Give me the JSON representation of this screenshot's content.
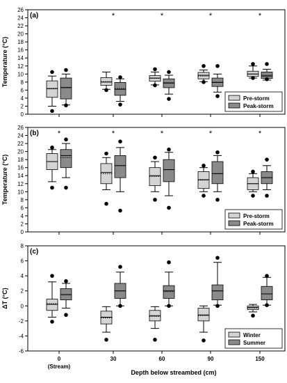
{
  "xlabel": "Depth below streambed (cm)",
  "categories": [
    "0",
    "30",
    "60",
    "90",
    "150"
  ],
  "category_sublabel": "(Stream)",
  "colors": {
    "series1": "#d4d4d4",
    "series2": "#8a8a8a"
  },
  "chart_data": [
    {
      "type": "box",
      "label": "(a)",
      "ylabel": "Temperature (°C)",
      "ylim": [
        0,
        26
      ],
      "yticks": [
        0,
        2,
        4,
        6,
        8,
        10,
        12,
        14,
        16,
        18,
        20,
        22,
        24,
        26
      ],
      "legend_position": "bottom-right",
      "significance": [
        "",
        "*",
        "*",
        "*",
        "*"
      ],
      "series": [
        {
          "name": "Pre-storm",
          "boxes": [
            {
              "whislo": 2,
              "q1": 4.2,
              "med": 6.4,
              "mean": 6.3,
              "q3": 8.3,
              "whishi": 9.5,
              "fliers": [
                10.5,
                0.8
              ]
            },
            {
              "whislo": 6.2,
              "q1": 7.2,
              "med": 8.0,
              "mean": 8.1,
              "q3": 9.1,
              "whishi": 10.5,
              "fliers": [
                6.0
              ]
            },
            {
              "whislo": 7.3,
              "q1": 8.2,
              "med": 9.0,
              "mean": 8.9,
              "q3": 9.6,
              "whishi": 10.5,
              "fliers": [
                11.2,
                7.2
              ]
            },
            {
              "whislo": 8.1,
              "q1": 8.8,
              "med": 9.7,
              "mean": 9.5,
              "q3": 10.4,
              "whishi": 11.0,
              "fliers": [
                12.0,
                8.0
              ]
            },
            {
              "whislo": 9.0,
              "q1": 9.4,
              "med": 10.0,
              "mean": 10.0,
              "q3": 10.7,
              "whishi": 12.0,
              "fliers": [
                12.5,
                9.0
              ]
            }
          ]
        },
        {
          "name": "Peak-storm",
          "boxes": [
            {
              "whislo": 2.3,
              "q1": 3.8,
              "med": 6.6,
              "mean": 6.7,
              "q3": 9.0,
              "whishi": 10.0,
              "fliers": [
                11.0,
                2.2
              ]
            },
            {
              "whislo": 3.2,
              "q1": 4.7,
              "med": 6.2,
              "mean": 6.4,
              "q3": 7.9,
              "whishi": 8.8,
              "fliers": [
                9.2,
                2.4
              ]
            },
            {
              "whislo": 5.0,
              "q1": 6.6,
              "med": 7.8,
              "mean": 7.7,
              "q3": 8.8,
              "whishi": 9.7,
              "fliers": [
                10.5,
                3.8
              ]
            },
            {
              "whislo": 5.5,
              "q1": 6.9,
              "med": 7.9,
              "mean": 8.0,
              "q3": 9.0,
              "whishi": 10.0,
              "fliers": [
                12.0,
                4.5
              ]
            },
            {
              "whislo": 8.5,
              "q1": 8.9,
              "med": 9.5,
              "mean": 9.7,
              "q3": 10.5,
              "whishi": 11.2,
              "fliers": [
                12.5,
                8.7
              ]
            }
          ]
        }
      ]
    },
    {
      "type": "box",
      "label": "(b)",
      "ylabel": "Temperature (°C)",
      "ylim": [
        0,
        26
      ],
      "yticks": [
        0,
        2,
        4,
        6,
        8,
        10,
        12,
        14,
        16,
        18,
        20,
        22,
        24,
        26
      ],
      "legend_position": "bottom-right",
      "significance": [
        "*",
        "*",
        "*",
        "*",
        "*"
      ],
      "series": [
        {
          "name": "Pre-storm",
          "boxes": [
            {
              "whislo": 12.5,
              "q1": 15.5,
              "med": 17.5,
              "mean": 17.5,
              "q3": 19.5,
              "whishi": 20.5,
              "fliers": [
                21.0,
                11.0
              ]
            },
            {
              "whislo": 10.5,
              "q1": 12.0,
              "med": 14.8,
              "mean": 14.5,
              "q3": 17.0,
              "whishi": 18.5,
              "fliers": [
                19.5,
                7.0
              ]
            },
            {
              "whislo": 10.0,
              "q1": 11.5,
              "med": 14.0,
              "mean": 13.8,
              "q3": 16.0,
              "whishi": 17.5,
              "fliers": [
                18.5,
                8.0
              ]
            },
            {
              "whislo": 10.0,
              "q1": 10.8,
              "med": 13.0,
              "mean": 12.9,
              "q3": 15.0,
              "whishi": 16.0,
              "fliers": [
                16.5,
                9.0
              ]
            },
            {
              "whislo": 10.0,
              "q1": 10.5,
              "med": 12.0,
              "mean": 12.0,
              "q3": 13.5,
              "whishi": 14.5,
              "fliers": [
                15.0,
                9.0
              ]
            }
          ]
        },
        {
          "name": "Peak-storm",
          "boxes": [
            {
              "whislo": 13.5,
              "q1": 16.0,
              "med": 19.0,
              "mean": 18.5,
              "q3": 20.5,
              "whishi": 22.0,
              "fliers": [
                23.0,
                11.0
              ]
            },
            {
              "whislo": 10.0,
              "q1": 13.5,
              "med": 16.5,
              "mean": 16.5,
              "q3": 19.0,
              "whishi": 21.0,
              "fliers": [
                22.5,
                5.3
              ]
            },
            {
              "whislo": 9.0,
              "q1": 12.5,
              "med": 15.5,
              "mean": 15.5,
              "q3": 18.0,
              "whishi": 19.8,
              "fliers": [
                20.5,
                6.0
              ]
            },
            {
              "whislo": 10.0,
              "q1": 12.0,
              "med": 14.5,
              "mean": 14.5,
              "q3": 17.5,
              "whishi": 19.0,
              "fliers": [
                19.8,
                8.0
              ]
            },
            {
              "whislo": 10.5,
              "q1": 12.0,
              "med": 13.5,
              "mean": 13.5,
              "q3": 15.0,
              "whishi": 16.5,
              "fliers": [
                18.0,
                9.0
              ]
            }
          ]
        }
      ]
    },
    {
      "type": "box",
      "label": "(c)",
      "ylabel": "ΔT (°C)",
      "ylim": [
        -6,
        8
      ],
      "yticks": [
        -6,
        -4,
        -2,
        0,
        2,
        4,
        6,
        8
      ],
      "legend_position": "bottom-right",
      "significance": [
        "",
        "",
        "",
        "",
        ""
      ],
      "series": [
        {
          "name": "Winter",
          "boxes": [
            {
              "whislo": -1.5,
              "q1": -0.6,
              "med": 0.2,
              "mean": 0.3,
              "q3": 0.9,
              "whishi": 3.2,
              "fliers": [
                4.0,
                -2.1
              ]
            },
            {
              "whislo": -3.5,
              "q1": -2.4,
              "med": -1.5,
              "mean": -1.6,
              "q3": -0.7,
              "whishi": -0.1,
              "fliers": [
                -4.5
              ]
            },
            {
              "whislo": -3.0,
              "q1": -2.0,
              "med": -1.3,
              "mean": -1.4,
              "q3": -0.6,
              "whishi": -0.1,
              "fliers": [
                -4.5
              ]
            },
            {
              "whislo": -3.5,
              "q1": -2.0,
              "med": -1.2,
              "mean": -1.3,
              "q3": -0.3,
              "whishi": 0.0,
              "fliers": [
                -4.6
              ]
            },
            {
              "whislo": -0.8,
              "q1": -0.5,
              "med": -0.2,
              "mean": -0.3,
              "q3": 0.0,
              "whishi": 0.2,
              "fliers": [
                -1.3
              ]
            }
          ]
        },
        {
          "name": "Summer",
          "boxes": [
            {
              "whislo": -0.3,
              "q1": 0.8,
              "med": 1.5,
              "mean": 1.5,
              "q3": 2.3,
              "whishi": 3.0,
              "fliers": [
                3.3,
                -1.2
              ]
            },
            {
              "whislo": 0.0,
              "q1": 1.0,
              "med": 2.0,
              "mean": 2.0,
              "q3": 3.0,
              "whishi": 4.5,
              "fliers": [
                5.2,
                0.0
              ]
            },
            {
              "whislo": 0.0,
              "q1": 1.0,
              "med": 2.0,
              "mean": 1.9,
              "q3": 2.7,
              "whishi": 4.5,
              "fliers": [
                5.8,
                0.0
              ]
            },
            {
              "whislo": 0.1,
              "q1": 0.8,
              "med": 2.0,
              "mean": 2.0,
              "q3": 2.8,
              "whishi": 5.8,
              "fliers": [
                6.4,
                0.0
              ]
            },
            {
              "whislo": 0.1,
              "q1": 0.8,
              "med": 1.6,
              "mean": 1.6,
              "q3": 2.6,
              "whishi": 3.8,
              "fliers": [
                4.0,
                0.1
              ]
            }
          ]
        }
      ]
    }
  ]
}
